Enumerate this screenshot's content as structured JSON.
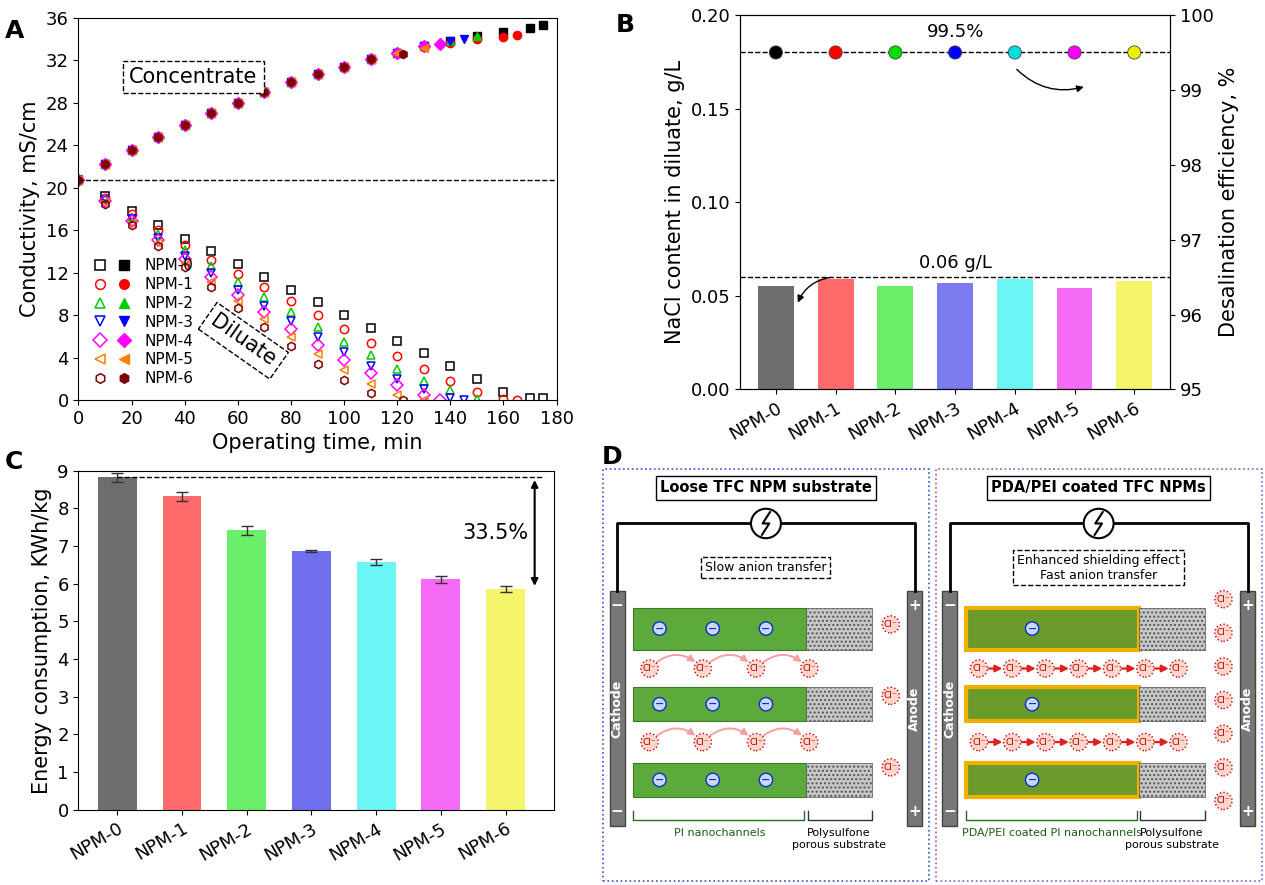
{
  "chart_data": [
    {
      "label": "A",
      "type": "scatter",
      "x_label": "Operating time, min",
      "y_label": "Conductivity, mS/cm",
      "xlim": [
        0,
        180
      ],
      "xticks": [
        0,
        20,
        40,
        60,
        80,
        100,
        120,
        140,
        160,
        180
      ],
      "ylim": [
        0,
        36
      ],
      "yticks": [
        0,
        4,
        8,
        12,
        16,
        20,
        24,
        28,
        32,
        36
      ],
      "legend": "lower left",
      "line_style": "none",
      "annotations": [
        "Concentrate",
        "Diluate"
      ],
      "hline": 20.7,
      "series": [
        {
          "name": "NPM-0",
          "color": "#000000",
          "marker": "square",
          "x": [
            0,
            10,
            20,
            30,
            40,
            50,
            60,
            70,
            80,
            90,
            100,
            110,
            120,
            130,
            140,
            150,
            160,
            170,
            175
          ],
          "diluate": [
            20.7,
            19.2,
            17.8,
            16.5,
            15.2,
            14.0,
            12.8,
            11.6,
            10.4,
            9.2,
            8.0,
            6.8,
            5.6,
            4.4,
            3.2,
            2.0,
            0.8,
            0.2,
            0.2
          ],
          "concentrate": [
            20.7,
            22.2,
            23.5,
            24.8,
            25.9,
            27.0,
            28.0,
            29.0,
            29.9,
            30.7,
            31.4,
            32.1,
            32.7,
            33.3,
            33.8,
            34.3,
            34.7,
            35.0,
            35.3
          ]
        },
        {
          "name": "NPM-1",
          "color": "#ff0000",
          "marker": "circle",
          "x": [
            0,
            10,
            20,
            30,
            40,
            50,
            60,
            70,
            80,
            90,
            100,
            110,
            120,
            130,
            140,
            150,
            160,
            165
          ],
          "diluate": [
            20.7,
            19.0,
            17.5,
            16.0,
            14.6,
            13.2,
            11.9,
            10.6,
            9.3,
            8.0,
            6.7,
            5.4,
            4.1,
            2.9,
            1.8,
            0.8,
            0.1,
            0.0
          ],
          "concentrate": [
            20.7,
            22.2,
            23.5,
            24.8,
            25.9,
            27.0,
            28.0,
            29.0,
            29.9,
            30.7,
            31.4,
            32.1,
            32.7,
            33.2,
            33.6,
            34.0,
            34.2,
            34.4
          ]
        },
        {
          "name": "NPM-2",
          "color": "#00cc00",
          "marker": "triangle_up",
          "x": [
            0,
            10,
            20,
            30,
            40,
            50,
            60,
            70,
            80,
            90,
            100,
            110,
            120,
            130,
            140,
            150
          ],
          "diluate": [
            20.7,
            18.9,
            17.2,
            15.6,
            14.1,
            12.6,
            11.1,
            9.7,
            8.3,
            6.9,
            5.5,
            4.2,
            2.9,
            1.8,
            0.9,
            0.1
          ],
          "concentrate": [
            20.7,
            22.2,
            23.5,
            24.8,
            25.9,
            27.0,
            28.0,
            29.0,
            29.9,
            30.7,
            31.4,
            32.1,
            32.7,
            33.3,
            33.8,
            34.3
          ]
        },
        {
          "name": "NPM-3",
          "color": "#0000ff",
          "marker": "triangle_down",
          "x": [
            0,
            10,
            20,
            30,
            40,
            50,
            60,
            70,
            80,
            90,
            100,
            110,
            120,
            130,
            140,
            145
          ],
          "diluate": [
            20.7,
            18.8,
            17.0,
            15.3,
            13.6,
            12.0,
            10.4,
            8.9,
            7.4,
            5.9,
            4.5,
            3.2,
            2.0,
            1.0,
            0.2,
            0.0
          ],
          "concentrate": [
            20.7,
            22.2,
            23.5,
            24.8,
            25.9,
            27.0,
            28.0,
            29.0,
            29.9,
            30.7,
            31.4,
            32.1,
            32.7,
            33.3,
            33.8,
            34.0
          ]
        },
        {
          "name": "NPM-4",
          "color": "#ff00ff",
          "marker": "diamond",
          "x": [
            0,
            10,
            20,
            30,
            40,
            50,
            60,
            70,
            80,
            90,
            100,
            110,
            120,
            130,
            136
          ],
          "diluate": [
            20.7,
            18.7,
            16.9,
            15.1,
            13.3,
            11.6,
            9.9,
            8.3,
            6.7,
            5.2,
            3.8,
            2.5,
            1.4,
            0.5,
            0.0
          ],
          "concentrate": [
            20.7,
            22.2,
            23.5,
            24.8,
            25.9,
            27.0,
            28.0,
            29.0,
            29.9,
            30.7,
            31.4,
            32.1,
            32.7,
            33.3,
            33.5
          ]
        },
        {
          "name": "NPM-5",
          "color": "#ff8000",
          "marker": "triangle_left",
          "x": [
            0,
            10,
            20,
            30,
            40,
            50,
            60,
            70,
            80,
            90,
            100,
            110,
            120,
            130
          ],
          "diluate": [
            20.7,
            18.6,
            16.7,
            14.8,
            12.9,
            11.1,
            9.3,
            7.6,
            5.9,
            4.3,
            2.8,
            1.5,
            0.5,
            0.0
          ],
          "concentrate": [
            20.7,
            22.2,
            23.5,
            24.8,
            25.9,
            27.0,
            28.0,
            29.0,
            29.9,
            30.7,
            31.4,
            32.1,
            32.7,
            33.1
          ]
        },
        {
          "name": "NPM-6",
          "color": "#800000",
          "marker": "hexagon",
          "x": [
            0,
            10,
            20,
            30,
            40,
            50,
            60,
            70,
            80,
            90,
            100,
            110,
            122
          ],
          "diluate": [
            20.7,
            18.5,
            16.5,
            14.5,
            12.5,
            10.6,
            8.7,
            6.9,
            5.1,
            3.4,
            1.9,
            0.7,
            0.0
          ],
          "concentrate": [
            20.7,
            22.2,
            23.5,
            24.8,
            25.9,
            27.0,
            28.0,
            29.0,
            29.9,
            30.7,
            31.4,
            32.1,
            32.6
          ]
        }
      ]
    },
    {
      "label": "B",
      "type": "bar",
      "categories": [
        "NPM-0",
        "NPM-1",
        "NPM-2",
        "NPM-3",
        "NPM-4",
        "NPM-5",
        "NPM-6"
      ],
      "y_label": "NaCl content in diluate, g/L",
      "y2_label": "Desalination efficiency, %",
      "ylim": [
        0,
        0.2
      ],
      "yticks": [
        {
          "value": 0,
          "label": "0.00"
        },
        {
          "value": 0.05,
          "label": "0.05"
        },
        {
          "value": 0.1,
          "label": "0.10"
        },
        {
          "value": 0.15,
          "label": "0.15"
        },
        {
          "value": 0.2,
          "label": "0.20"
        }
      ],
      "y2lim": [
        95,
        100
      ],
      "y2ticks": [
        95,
        96,
        97,
        98,
        99,
        100
      ],
      "reference_line": {
        "value": 0.06,
        "label": "0.06 g/L"
      },
      "y2_reference_line": {
        "value": 99.5,
        "label": "99.5%"
      },
      "series": [
        {
          "type": "bar",
          "values": [
            0.055,
            0.059,
            0.055,
            0.057,
            0.059,
            0.054,
            0.058
          ],
          "colors": [
            "#6e6e6e",
            "#ff6b6b",
            "#6bef6b",
            "#7b7bef",
            "#6bf5f5",
            "#f56bf5",
            "#f5f56b"
          ]
        },
        {
          "type": "scatter",
          "axis": "y2",
          "marker": "circle",
          "values": [
            99.5,
            99.5,
            99.5,
            99.5,
            99.5,
            99.5,
            99.5
          ],
          "colors": [
            "#000000",
            "#ff0000",
            "#00dd00",
            "#0000ff",
            "#00dddd",
            "#ff00ff",
            "#eeee00"
          ]
        }
      ]
    },
    {
      "label": "C",
      "type": "bar",
      "categories": [
        "NPM-0",
        "NPM-1",
        "NPM-2",
        "NPM-3",
        "NPM-4",
        "NPM-5",
        "NPM-6"
      ],
      "y_label": "Energy consumption, KWh/kg",
      "ylim": [
        0,
        9
      ],
      "yticks": [
        0,
        1,
        2,
        3,
        4,
        5,
        6,
        7,
        8,
        9
      ],
      "values": [
        8.83,
        8.32,
        7.42,
        6.87,
        6.58,
        6.12,
        5.87
      ],
      "errors": [
        0.12,
        0.12,
        0.12,
        0.02,
        0.08,
        0.1,
        0.08
      ],
      "colors": [
        "#6e6e6e",
        "#ff6b6b",
        "#6bef6b",
        "#7070ef",
        "#6bf5f5",
        "#f56bf5",
        "#f5f56b"
      ],
      "annotation": "33.5%"
    }
  ],
  "diagram": {
    "label": "D",
    "ion": "Cl⁻",
    "fixed_charge": "−",
    "cathode": "Cathode",
    "anode": "Anode",
    "cathode_sign": "−",
    "anode_sign": "+",
    "cells": [
      {
        "title": "Loose TFC NPM substrate",
        "note": [
          "Slow anion transfer"
        ],
        "channels": "PI nanochannels",
        "substrate": "Polysulfone\nporous substrate"
      },
      {
        "title": "PDA/PEI coated TFC NPMs",
        "note": [
          "Enhanced shielding effect",
          "Fast anion transfer"
        ],
        "channels": "PDA/PEI coated PI nanochannels",
        "substrate": "Polysulfone\nporous substrate"
      }
    ]
  }
}
